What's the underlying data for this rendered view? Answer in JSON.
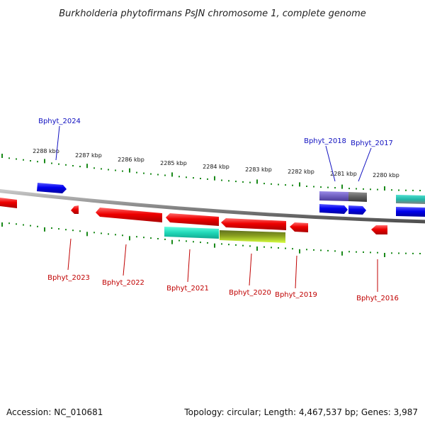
{
  "title": "Burkholderia phytofirmans PsJN chromosome 1, complete genome",
  "accession": "Accession: NC_010681",
  "summary": "Topology: circular; Length: 4,467,537 bp; Genes: 3,987",
  "scale_labels": [
    "2288 kbp",
    "2287 kbp",
    "2286 kbp",
    "2285 kbp",
    "2284 kbp",
    "2283 kbp",
    "2282 kbp",
    "2281 kbp",
    "2280 kbp"
  ],
  "colors": {
    "backbone": "#8a8a8a",
    "tick": "#1a8a1a",
    "forward_gene": "#0000ee",
    "reverse_gene": "#ee0000",
    "teal_gene": "#20c8b0",
    "olive_gene": "#8aa020",
    "purple_gene": "#7060c0",
    "gray_gene": "#606060",
    "label_forward": "#1010c0",
    "label_reverse": "#c00000"
  },
  "genes_forward": [
    {
      "label": "Bphyt_2024",
      "color": "forward"
    },
    {
      "label": "Bphyt_2018",
      "color": "purple"
    },
    {
      "label": "Bphyt_2017",
      "color": "forward"
    }
  ],
  "genes_reverse": [
    {
      "label": "Bphyt_2023",
      "color": "reverse"
    },
    {
      "label": "Bphyt_2022",
      "color": "reverse"
    },
    {
      "label": "Bphyt_2021",
      "color": "teal"
    },
    {
      "label": "Bphyt_2020",
      "color": "olive"
    },
    {
      "label": "Bphyt_2019",
      "color": "reverse"
    },
    {
      "label": "Bphyt_2016",
      "color": "reverse"
    }
  ]
}
